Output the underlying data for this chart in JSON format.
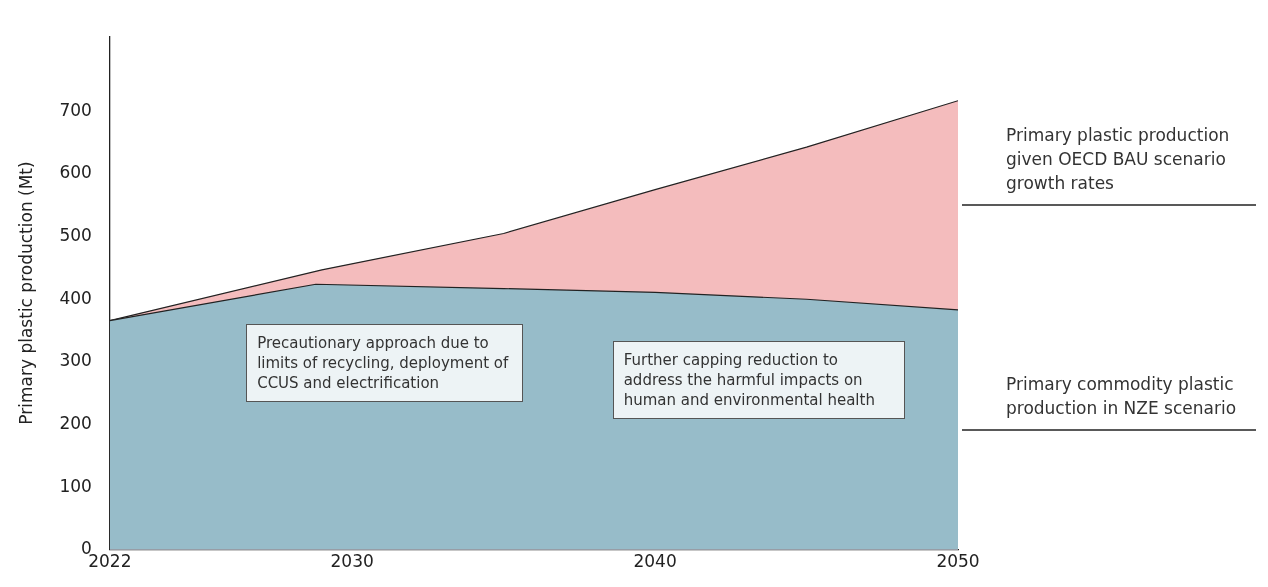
{
  "chart_data": {
    "type": "area",
    "ylabel": "Primary plastic production (Mt)",
    "xlim": [
      2022,
      2050
    ],
    "xticks": [
      2022,
      2030,
      2040,
      2050
    ],
    "ylim": [
      0,
      820
    ],
    "yticks": [
      0,
      100,
      200,
      300,
      400,
      500,
      600,
      700
    ],
    "grid": false,
    "legend": false,
    "marker": "none",
    "series": [
      {
        "name": "Primary plastic production given OECD BAU scenario growth rates",
        "color": "#f4bcbd",
        "x": [
          2022,
          2029,
          2035,
          2040,
          2045,
          2050
        ],
        "values": [
          366,
          447,
          505,
          575,
          643,
          717
        ]
      },
      {
        "name": "Primary commodity plastic production in NZE scenario",
        "color": "#97bcc9",
        "x": [
          2022,
          2028.8,
          2035,
          2040,
          2045,
          2050
        ],
        "values": [
          366,
          424,
          417,
          411,
          400,
          383
        ]
      }
    ],
    "annotations": [
      "Precautionary approach due to limits of recycling, deployment of CCUS and electrification",
      "Further capping reduction to address the harmful impacts on human and environmental health"
    ]
  }
}
